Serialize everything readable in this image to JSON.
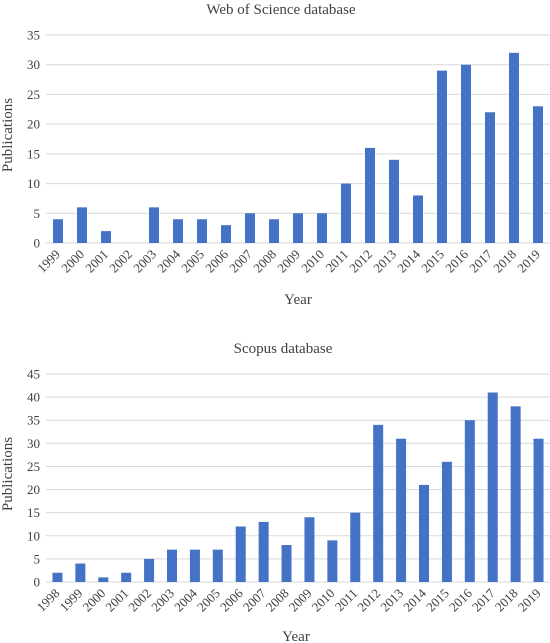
{
  "chart_data": [
    {
      "type": "bar",
      "title": "Web of Science database",
      "xlabel": "Year",
      "ylabel": "Publications",
      "ylim": [
        0,
        35
      ],
      "yticks": [
        0,
        5,
        10,
        15,
        20,
        25,
        30,
        35
      ],
      "grid": true,
      "color": "#4472c4",
      "categories": [
        "1999",
        "2000",
        "2001",
        "2002",
        "2003",
        "2004",
        "2005",
        "2006",
        "2007",
        "2008",
        "2009",
        "2010",
        "2011",
        "2012",
        "2013",
        "2014",
        "2015",
        "2016",
        "2017",
        "2018",
        "2019"
      ],
      "values": [
        4,
        6,
        2,
        0,
        6,
        4,
        4,
        3,
        5,
        4,
        5,
        5,
        10,
        16,
        14,
        8,
        29,
        30,
        22,
        32,
        23
      ]
    },
    {
      "type": "bar",
      "title": "Scopus database",
      "xlabel": "Year",
      "ylabel": "Publications",
      "ylim": [
        0,
        45
      ],
      "yticks": [
        0,
        5,
        10,
        15,
        20,
        25,
        30,
        35,
        40,
        45
      ],
      "grid": true,
      "color": "#4472c4",
      "categories": [
        "1998",
        "1999",
        "2000",
        "2001",
        "2002",
        "2003",
        "2004",
        "2005",
        "2006",
        "2007",
        "2008",
        "2009",
        "2010",
        "2011",
        "2012",
        "2013",
        "2014",
        "2015",
        "2016",
        "2017",
        "2018",
        "2019"
      ],
      "values": [
        2,
        4,
        1,
        2,
        5,
        7,
        7,
        7,
        12,
        13,
        8,
        14,
        9,
        15,
        34,
        31,
        21,
        26,
        35,
        41,
        38,
        31
      ]
    }
  ]
}
